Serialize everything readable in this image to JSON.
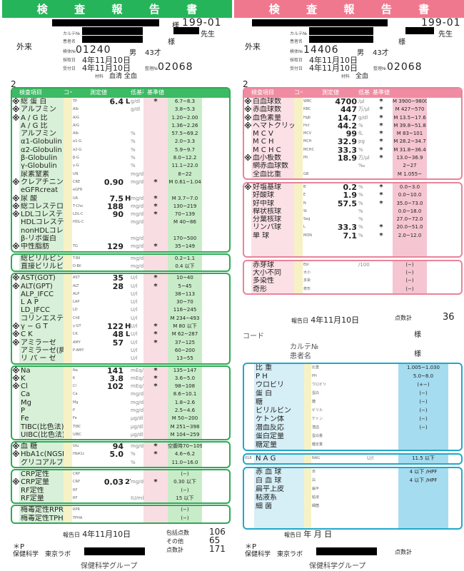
{
  "left": {
    "title": [
      "検",
      "査",
      "報",
      "告",
      "書"
    ],
    "sama": "様",
    "docno": "199-01",
    "karte": "カルテ№",
    "patient": "患者名",
    "sensei": "先生",
    "sama2": "様",
    "dept": "外来",
    "kenno_label": "検体№",
    "kenno": "01240",
    "sex": "男",
    "age": "43才",
    "collect_label": "採取日",
    "collect": "4年11月10日",
    "recv_label": "受付日",
    "recv": "4年11月10日",
    "seiri_label": "整理№",
    "seiri": "02068",
    "material_label": "材料",
    "material": "血清 全血",
    "page": "2",
    "head": {
      "item": "検査項目",
      "cd": "コード",
      "val": "測定値",
      "flag": "低基準高",
      "ref": "基準値"
    },
    "rows": [
      {
        "ast": "※",
        "name": "総 蛋 白",
        "code": "TP",
        "flag": "L",
        "val": "6.4",
        "unit": "g/dl",
        "mk": "*",
        "ref": "6.7~8.3"
      },
      {
        "ast": "※",
        "name": "アルブミン",
        "code": "Alb",
        "flag": "",
        "val": "",
        "unit": "g/dl",
        "mk": "",
        "ref": "3.8~5.3"
      },
      {
        "ast": "※",
        "name": "A / G 比",
        "code": "A/G",
        "flag": "",
        "val": "",
        "unit": "",
        "mk": "",
        "ref": "1.20~2.00"
      },
      {
        "ast": "",
        "name": "A / G 比",
        "code": "A/G",
        "flag": "",
        "val": "",
        "unit": "",
        "mk": "",
        "ref": "1.36~2.26"
      },
      {
        "ast": "",
        "name": "アルブミン",
        "code": "Alb",
        "flag": "",
        "val": "",
        "unit": "%",
        "mk": "",
        "ref": "57.5~69.2"
      },
      {
        "ast": "",
        "name": "α1-Globulin",
        "code": "α1-G",
        "flag": "",
        "val": "",
        "unit": "%",
        "mk": "",
        "ref": "2.0~3.3"
      },
      {
        "ast": "",
        "name": "α2-Globulin",
        "code": "α2-G",
        "flag": "",
        "val": "",
        "unit": "%",
        "mk": "",
        "ref": "5.9~9.7"
      },
      {
        "ast": "",
        "name": "β-Globulin",
        "code": "β-G",
        "flag": "",
        "val": "",
        "unit": "%",
        "mk": "",
        "ref": "8.0~12.2"
      },
      {
        "ast": "",
        "name": "γ-Globulin",
        "code": "γ-G",
        "flag": "",
        "val": "",
        "unit": "%",
        "mk": "",
        "ref": "11.1~22.0"
      },
      {
        "ast": "",
        "name": "尿素窒素",
        "code": "UN",
        "flag": "",
        "val": "",
        "unit": "mg/dl",
        "mk": "",
        "ref": "8~22"
      },
      {
        "ast": "※",
        "name": "クレアチニン",
        "code": "CRE",
        "flag": "",
        "val": "0.90",
        "unit": "mg/dl",
        "mk": "*",
        "ref": "M 0.61~1.04"
      },
      {
        "ast": "",
        "name": "eGFRcreat",
        "code": "eGFR",
        "flag": "",
        "val": "",
        "unit": "",
        "mk": "",
        "ref": ""
      },
      {
        "ast": "※",
        "name": "尿 酸",
        "code": "UA",
        "flag": "H",
        "val": "7.5",
        "unit": "mg/dl",
        "mk": "*",
        "ref": "M 3.7~7.0"
      },
      {
        "ast": "※",
        "name": "総コレステロール",
        "code": "T-Cho",
        "flag": "",
        "val": "188",
        "unit": "mg/dl",
        "mk": "*",
        "ref": "130~219"
      },
      {
        "ast": "※",
        "name": "LDLコレステロール",
        "code": "LDL-C",
        "flag": "",
        "val": "90",
        "unit": "mg/dl",
        "mk": "*",
        "ref": "70~139"
      },
      {
        "ast": "",
        "name": "HDLコレステロール",
        "code": "HDL-C",
        "flag": "",
        "val": "",
        "unit": "mg/dl",
        "mk": "",
        "ref": "M 40~86"
      },
      {
        "ast": "",
        "name": "nonHDLコレステロール",
        "code": "",
        "flag": "",
        "val": "",
        "unit": "",
        "mk": "",
        "ref": ""
      },
      {
        "ast": "",
        "name": "β-リポ蛋白",
        "code": "",
        "flag": "",
        "val": "",
        "unit": "mg/dl",
        "mk": "",
        "ref": "170~500"
      },
      {
        "ast": "※",
        "name": "中性脂肪",
        "code": "TG",
        "flag": "",
        "val": "129",
        "unit": "mg/dl",
        "mk": "*",
        "ref": "35~149"
      }
    ],
    "rows2": [
      {
        "ast": "",
        "name": "総ビリルビン",
        "code": "T-Bil",
        "flag": "",
        "val": "",
        "unit": "mg/dl",
        "mk": "",
        "ref": "0.2~1.1"
      },
      {
        "ast": "",
        "name": "直接ビリルビン",
        "code": "D-Bil",
        "flag": "",
        "val": "",
        "unit": "mg/dl",
        "mk": "",
        "ref": "0.4 以下"
      }
    ],
    "rows3": [
      {
        "ast": "※",
        "name": "AST(GOT)",
        "code": "AST",
        "flag": "",
        "val": "35",
        "unit": "U/l",
        "mk": "*",
        "ref": "10~40"
      },
      {
        "ast": "※",
        "name": "ALT(GPT)",
        "code": "ALT",
        "flag": "",
        "val": "28",
        "unit": "U/l",
        "mk": "*",
        "ref": "5~45"
      },
      {
        "ast": "",
        "name": "ALP_IFCC",
        "code": "ALP",
        "flag": "",
        "val": "",
        "unit": "U/l",
        "mk": "",
        "ref": "38~113"
      },
      {
        "ast": "",
        "name": "L A P",
        "code": "LAP",
        "flag": "",
        "val": "",
        "unit": "U/l",
        "mk": "",
        "ref": "30~70"
      },
      {
        "ast": "",
        "name": "LD_IFCC",
        "code": "LD",
        "flag": "",
        "val": "",
        "unit": "U/l",
        "mk": "",
        "ref": "116~245"
      },
      {
        "ast": "",
        "name": "コリンエステラーゼ",
        "code": "ChE",
        "flag": "",
        "val": "",
        "unit": "U/l",
        "mk": "",
        "ref": "M 234~493"
      },
      {
        "ast": "※",
        "name": "γ − G T",
        "code": "γ-GT",
        "flag": "H",
        "val": "122",
        "unit": "U/l",
        "mk": "*",
        "ref": "M 80 以下"
      },
      {
        "ast": "※",
        "name": "C K",
        "code": "CK",
        "flag": "L",
        "val": "48",
        "unit": "U/l",
        "mk": "*",
        "ref": "M 62~287"
      },
      {
        "ast": "※",
        "name": "アミラーゼ",
        "code": "AMY",
        "flag": "",
        "val": "57",
        "unit": "U/l",
        "mk": "*",
        "ref": "37~125"
      },
      {
        "ast": "",
        "name": "アミラーゼ(膵)",
        "code": "P-AMY",
        "flag": "",
        "val": "",
        "unit": "U/l",
        "mk": "",
        "ref": "60~200"
      },
      {
        "ast": "",
        "name": "リ パ ー ゼ",
        "code": "",
        "flag": "",
        "val": "",
        "unit": "U/l",
        "mk": "",
        "ref": "13~55"
      }
    ],
    "rows4": [
      {
        "ast": "※",
        "name": "Na",
        "code": "Na",
        "flag": "",
        "val": "141",
        "unit": "mEq/l",
        "mk": "*",
        "ref": "135~147"
      },
      {
        "ast": "※",
        "name": "K",
        "code": "K",
        "flag": "",
        "val": "3.8",
        "unit": "mEq/l",
        "mk": "*",
        "ref": "3.6~5.0"
      },
      {
        "ast": "※",
        "name": "Cl",
        "code": "Cl",
        "flag": "",
        "val": "102",
        "unit": "mEq/l",
        "mk": "*",
        "ref": "98~108"
      },
      {
        "ast": "",
        "name": "Ca",
        "code": "Ca",
        "flag": "",
        "val": "",
        "unit": "mg/dl",
        "mk": "",
        "ref": "8.6~10.1"
      },
      {
        "ast": "",
        "name": "Mg",
        "code": "Mg",
        "flag": "",
        "val": "",
        "unit": "mg/dl",
        "mk": "",
        "ref": "1.8~2.6"
      },
      {
        "ast": "",
        "name": "P",
        "code": "P",
        "flag": "",
        "val": "",
        "unit": "mg/dl",
        "mk": "",
        "ref": "2.5~4.6"
      },
      {
        "ast": "",
        "name": "Fe",
        "code": "Fe",
        "flag": "",
        "val": "",
        "unit": "μg/dl",
        "mk": "",
        "ref": "M 50~200"
      },
      {
        "ast": "",
        "name": "TIBC(比色法)",
        "code": "TIBC",
        "flag": "",
        "val": "",
        "unit": "μg/dl",
        "mk": "",
        "ref": "M 251~398"
      },
      {
        "ast": "",
        "name": "UIBC(比色法)",
        "code": "UIBC",
        "flag": "",
        "val": "",
        "unit": "μg/dl",
        "mk": "",
        "ref": "M 104~259"
      }
    ],
    "rows5": [
      {
        "ast": "※",
        "name": "血 糖",
        "code": "Glu",
        "flag": "",
        "val": "94",
        "unit": "mg/dl",
        "mk": "*",
        "ref": "空腹時70~109"
      },
      {
        "ast": "※",
        "name": "HbA1c(NGSP)",
        "code": "HbA1c",
        "flag": "",
        "val": "5.0",
        "unit": "%",
        "mk": "*",
        "ref": "4.6~6.2"
      },
      {
        "ast": "",
        "name": "グリコアルブミン",
        "code": "",
        "flag": "",
        "val": "",
        "unit": "%",
        "mk": "",
        "ref": "11.0~16.0"
      }
    ],
    "rows6": [
      {
        "ast": "",
        "name": "CRP定性",
        "code": "CRP",
        "flag": "",
        "val": "",
        "unit": "",
        "mk": "",
        "ref": "(−)"
      },
      {
        "ast": "※",
        "name": "CRP定量",
        "code": "CRP",
        "flag": "2T",
        "val": "0.03",
        "unit": "mg/dl",
        "mk": "*",
        "ref": "0.30 以下"
      },
      {
        "ast": "",
        "name": "RF定性",
        "code": "RF",
        "flag": "",
        "val": "",
        "unit": "",
        "mk": "",
        "ref": "(−)"
      },
      {
        "ast": "",
        "name": "RF定量",
        "code": "RF",
        "flag": "",
        "val": "",
        "unit": "IU/ml",
        "mk": "",
        "ref": "15 以下"
      }
    ],
    "rows7": [
      {
        "ast": "",
        "name": "梅毒定性RPR法",
        "code": "RPR",
        "flag": "",
        "val": "",
        "unit": "",
        "mk": "",
        "ref": "(−)"
      },
      {
        "ast": "",
        "name": "梅毒定性TPHA",
        "code": "TPHA",
        "flag": "",
        "val": "",
        "unit": "",
        "mk": "",
        "ref": "(−)"
      }
    ],
    "report_label": "報告日",
    "report": "4年11月10日",
    "pts": [
      {
        "l": "包括点数",
        "v": "106"
      },
      {
        "l": "その他",
        "v": "65"
      },
      {
        "l": "点数計",
        "v": "171"
      }
    ],
    "foot1": "＊P",
    "foot2": "保健科学　東京ラボ",
    "group": "保健科学グループ"
  },
  "right": {
    "title": [
      "検",
      "査",
      "報",
      "告",
      "書"
    ],
    "docno": "199-01",
    "sensei": "先生",
    "dept": "外来",
    "kenno": "14406",
    "sex": "男",
    "age": "43才",
    "collect": "4年11月10日",
    "recv": "4年11月10日",
    "seiri": "02068",
    "material": "全血",
    "page": "2",
    "head": {
      "item": "検査項目",
      "cd": "コード",
      "val": "測定値",
      "flag": "低基準高",
      "ref": "基準値"
    },
    "rows": [
      {
        "ast": "※",
        "name": "白血球数",
        "code": "WBC",
        "val": "4700",
        "unit": "/μl",
        "mk": "*",
        "ref": "M 3900~9800"
      },
      {
        "ast": "※",
        "name": "赤血球数",
        "code": "RBC",
        "val": "447",
        "unit": "万/μl",
        "mk": "*",
        "ref": "M 427~570"
      },
      {
        "ast": "※",
        "name": "血色素量",
        "code": "Hgb",
        "val": "14.7",
        "unit": "g/dl",
        "mk": "*",
        "ref": "M 13.5~17.6"
      },
      {
        "ast": "※",
        "name": "ヘマトクリット値",
        "code": "Hct",
        "val": "44.2",
        "unit": "%",
        "mk": "*",
        "ref": "M 39.8~51.8"
      },
      {
        "ast": "",
        "name": "M C V",
        "code": "MCV",
        "val": "99",
        "unit": "fL",
        "mk": "*",
        "ref": "M 83~101"
      },
      {
        "ast": "",
        "name": "M C H",
        "code": "MCH",
        "val": "32.9",
        "unit": "pg",
        "mk": "*",
        "ref": "M 28.2~34.7"
      },
      {
        "ast": "",
        "name": "M C H C",
        "code": "MCHC",
        "val": "33.3",
        "unit": "%",
        "mk": "*",
        "ref": "M 31.8~36.4"
      },
      {
        "ast": "※",
        "name": "血小板数",
        "code": "Plt",
        "val": "18.9",
        "unit": "万/μl",
        "mk": "*",
        "ref": "13.0~36.9"
      },
      {
        "ast": "",
        "name": "網赤血球数",
        "code": "",
        "val": "",
        "unit": "‰",
        "mk": "",
        "ref": "2~27"
      },
      {
        "ast": "",
        "name": "全血比重",
        "code": "GB",
        "val": "",
        "unit": "",
        "mk": "",
        "ref": "M 1.055~"
      }
    ],
    "rows2": [
      {
        "ast": "※",
        "name": "好塩基球",
        "code": "B",
        "val": "0.2",
        "unit": "%",
        "mk": "*",
        "ref": "0.0~3.0"
      },
      {
        "ast": "",
        "name": "好酸球",
        "code": "E",
        "val": "1.9",
        "unit": "%",
        "mk": "*",
        "ref": "0.0~10.0"
      },
      {
        "ast": "",
        "name": "好中球",
        "code": "N",
        "val": "57.5",
        "unit": "%",
        "mk": "*",
        "ref": "35.0~73.0"
      },
      {
        "ast": "",
        "name": "桿状核球",
        "code": "St",
        "val": "",
        "unit": "%",
        "mk": "",
        "ref": "0.0~18.0"
      },
      {
        "ast": "",
        "name": "分葉核球",
        "code": "Seg",
        "val": "",
        "unit": "%",
        "mk": "",
        "ref": "27.0~72.0"
      },
      {
        "ast": "",
        "name": "リンパ球",
        "code": "L",
        "val": "33.3",
        "unit": "%",
        "mk": "*",
        "ref": "20.0~51.0"
      },
      {
        "ast": "",
        "name": "単 球",
        "code": "MON",
        "val": "7.1",
        "unit": "%",
        "mk": "*",
        "ref": "2.0~12.0"
      },
      {
        "ast": "",
        "name": "",
        "code": "",
        "val": "",
        "unit": "",
        "mk": "",
        "ref": ""
      },
      {
        "ast": "",
        "name": "",
        "code": "",
        "val": "",
        "unit": "",
        "mk": "",
        "ref": ""
      }
    ],
    "rows3": [
      {
        "ast": "",
        "name": "赤芽球",
        "code": "Ebl",
        "val": "",
        "unit": "/100W",
        "mk": "",
        "ref": "(−)"
      },
      {
        "ast": "",
        "name": "大小不同",
        "code": "大小",
        "val": "",
        "unit": "",
        "mk": "",
        "ref": "(−)"
      },
      {
        "ast": "",
        "name": "多染性",
        "code": "多染",
        "val": "",
        "unit": "",
        "mk": "",
        "ref": "(−)"
      },
      {
        "ast": "",
        "name": "奇形",
        "code": "奇形",
        "val": "",
        "unit": "",
        "mk": "",
        "ref": "(−)"
      }
    ],
    "report_label": "報告日",
    "report": "4年11月10日",
    "pts_label": "点数計",
    "pts": "36",
    "code_label": "コード",
    "sama": "様",
    "karte": "カルテ№",
    "patient": "患者名",
    "urine_rows": [
      {
        "name": "比 重",
        "code": "比重",
        "ref": "1.005~1.030"
      },
      {
        "name": "P H",
        "code": "PH",
        "ref": "5.0~8.0"
      },
      {
        "name": "ウロビリ",
        "code": "ウロビリ",
        "ref": "(+−)"
      },
      {
        "name": "蛋 白",
        "code": "蛋白",
        "ref": "(−)"
      },
      {
        "name": "糖",
        "code": "糖",
        "ref": "(−)"
      },
      {
        "name": "ビリルビン",
        "code": "ビリル",
        "ref": "(−)"
      },
      {
        "name": "ケトン体",
        "code": "ケトン",
        "ref": "(−)"
      },
      {
        "name": "潜血反応",
        "code": "潜血",
        "ref": "(−)"
      },
      {
        "name": "蛋白定量",
        "code": "蛋白量",
        "ref": ""
      },
      {
        "name": "糖定量",
        "code": "糖定量",
        "ref": ""
      }
    ],
    "nag": {
      "no": "018",
      "name": "N A G",
      "code": "NAG",
      "unit": "U/l",
      "ref": "11.5 以下"
    },
    "sed_rows": [
      {
        "name": "赤 血 球",
        "code": "赤",
        "ref": "4 以下 /HPF"
      },
      {
        "name": "白 血 球",
        "code": "白",
        "ref": "4 以下 /HPF"
      },
      {
        "name": "扁平上皮",
        "code": "扁平",
        "ref": ""
      },
      {
        "name": "粘液系",
        "code": "粘液",
        "ref": ""
      },
      {
        "name": "細 菌",
        "code": "細菌",
        "ref": ""
      },
      {
        "name": "",
        "code": "",
        "ref": ""
      },
      {
        "name": "",
        "code": "",
        "ref": ""
      }
    ],
    "report2": "年 月 日",
    "pts2_label": "点数計",
    "foot1": "＊P",
    "foot2": "保健科学　東京ラボ",
    "group": "保健科学グループ"
  }
}
